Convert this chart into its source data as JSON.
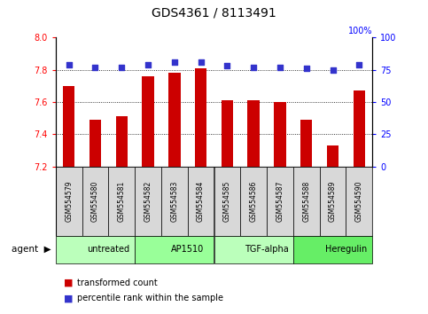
{
  "title": "GDS4361 / 8113491",
  "samples": [
    "GSM554579",
    "GSM554580",
    "GSM554581",
    "GSM554582",
    "GSM554583",
    "GSM554584",
    "GSM554585",
    "GSM554586",
    "GSM554587",
    "GSM554588",
    "GSM554589",
    "GSM554590"
  ],
  "bar_values": [
    7.7,
    7.49,
    7.51,
    7.76,
    7.78,
    7.81,
    7.61,
    7.61,
    7.6,
    7.49,
    7.33,
    7.67
  ],
  "percentile_values": [
    79,
    77,
    77,
    79,
    81,
    81,
    78,
    77,
    77,
    76,
    75,
    79
  ],
  "ylim_left": [
    7.2,
    8.0
  ],
  "ylim_right": [
    0,
    100
  ],
  "yticks_left": [
    7.2,
    7.4,
    7.6,
    7.8,
    8.0
  ],
  "yticks_right": [
    0,
    25,
    50,
    75,
    100
  ],
  "bar_color": "#cc0000",
  "dot_color": "#3333cc",
  "grid_lines": [
    7.4,
    7.6,
    7.8
  ],
  "agent_groups": [
    {
      "label": "untreated",
      "start": 0,
      "end": 3,
      "color": "#bbffbb"
    },
    {
      "label": "AP1510",
      "start": 3,
      "end": 6,
      "color": "#99ff99"
    },
    {
      "label": "TGF-alpha",
      "start": 6,
      "end": 9,
      "color": "#bbffbb"
    },
    {
      "label": "Heregulin",
      "start": 9,
      "end": 12,
      "color": "#66ee66"
    }
  ],
  "bar_width": 0.45,
  "background_color": "#ffffff",
  "title_fontsize": 10,
  "tick_fontsize": 7,
  "sample_fontsize": 5.5,
  "group_fontsize": 7,
  "legend_fontsize": 7
}
